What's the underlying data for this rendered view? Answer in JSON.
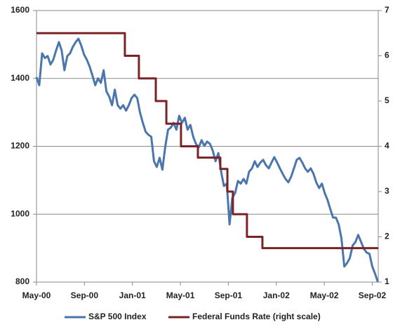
{
  "chart_data": {
    "type": "line",
    "xlim": [
      0,
      28.5
    ],
    "xticks": [
      {
        "value": 0,
        "label": "May-00"
      },
      {
        "value": 4,
        "label": "Sep-00"
      },
      {
        "value": 8,
        "label": "Jan-01"
      },
      {
        "value": 12,
        "label": "May-01"
      },
      {
        "value": 16,
        "label": "Sep-01"
      },
      {
        "value": 20,
        "label": "Jan-02"
      },
      {
        "value": 24,
        "label": "May-02"
      },
      {
        "value": 28,
        "label": "Sep-02"
      }
    ],
    "ylim": [
      800,
      1600
    ],
    "yticks": [
      800,
      1000,
      1200,
      1400,
      1600
    ],
    "y2lim": [
      1,
      7
    ],
    "y2ticks": [
      1,
      2,
      3,
      4,
      5,
      6,
      7
    ],
    "grid": true,
    "legend": "bottom",
    "series": [
      {
        "name": "S&P 500 Index",
        "color": "#4a76ad",
        "step": false,
        "x": [
          0,
          0.23,
          0.47,
          0.7,
          0.93,
          1.17,
          1.4,
          1.63,
          1.87,
          2.1,
          2.33,
          2.57,
          2.8,
          3.03,
          3.27,
          3.5,
          3.73,
          3.97,
          4.2,
          4.43,
          4.67,
          4.9,
          5.13,
          5.37,
          5.6,
          5.83,
          6.07,
          6.3,
          6.53,
          6.77,
          7,
          7.23,
          7.47,
          7.7,
          7.93,
          8.17,
          8.4,
          8.63,
          8.87,
          9.1,
          9.33,
          9.57,
          9.8,
          10.03,
          10.27,
          10.5,
          10.73,
          10.97,
          11.2,
          11.43,
          11.67,
          11.9,
          12.13,
          12.37,
          12.6,
          12.83,
          13.07,
          13.3,
          13.53,
          13.77,
          14,
          14.23,
          14.47,
          14.7,
          14.93,
          15.17,
          15.4,
          15.63,
          15.87,
          16.1,
          16.33,
          16.57,
          16.8,
          17.03,
          17.27,
          17.5,
          17.73,
          17.97,
          18.2,
          18.43,
          18.67,
          18.9,
          19.13,
          19.37,
          19.6,
          19.83,
          20.07,
          20.3,
          20.53,
          20.77,
          21,
          21.23,
          21.47,
          21.7,
          21.93,
          22.17,
          22.4,
          22.63,
          22.87,
          23.1,
          23.33,
          23.57,
          23.8,
          24.03,
          24.27,
          24.5,
          24.73,
          24.97,
          25.2,
          25.43,
          25.67,
          25.9,
          26.13,
          26.37,
          26.6,
          26.83,
          27.07,
          27.3,
          27.53,
          27.77,
          28,
          28.23,
          28.47
        ],
        "values": [
          1404,
          1380,
          1474,
          1460,
          1466,
          1441,
          1455,
          1482,
          1507,
          1482,
          1424,
          1466,
          1474,
          1493,
          1507,
          1517,
          1497,
          1470,
          1455,
          1435,
          1408,
          1380,
          1400,
          1387,
          1424,
          1362,
          1346,
          1321,
          1367,
          1321,
          1311,
          1321,
          1305,
          1321,
          1342,
          1352,
          1342,
          1300,
          1269,
          1243,
          1234,
          1228,
          1156,
          1139,
          1166,
          1131,
          1197,
          1249,
          1255,
          1269,
          1249,
          1290,
          1269,
          1284,
          1249,
          1263,
          1228,
          1207,
          1197,
          1218,
          1201,
          1214,
          1207,
          1187,
          1156,
          1180,
          1125,
          1083,
          1090,
          970,
          1048,
          1063,
          1098,
          1090,
          1104,
          1090,
          1125,
          1135,
          1156,
          1139,
          1152,
          1160,
          1145,
          1135,
          1152,
          1168,
          1152,
          1135,
          1119,
          1104,
          1094,
          1110,
          1135,
          1160,
          1166,
          1152,
          1135,
          1125,
          1135,
          1119,
          1094,
          1077,
          1090,
          1063,
          1042,
          1015,
          990,
          990,
          970,
          929,
          846,
          856,
          871,
          908,
          918,
          939,
          918,
          898,
          887,
          883,
          846,
          825,
          800
        ]
      },
      {
        "name": "Federal Funds Rate (right scale)",
        "color": "#7a2326",
        "axis": "y2",
        "step": true,
        "x": [
          0,
          7.37,
          8.54,
          9.95,
          10.83,
          12.05,
          13.46,
          15.33,
          15.92,
          16.38,
          17.55,
          18.84,
          28.5
        ],
        "values": [
          6.5,
          6,
          5.5,
          5,
          4.5,
          4,
          3.75,
          3.5,
          3,
          2.5,
          2,
          1.75,
          1.75
        ]
      }
    ]
  }
}
